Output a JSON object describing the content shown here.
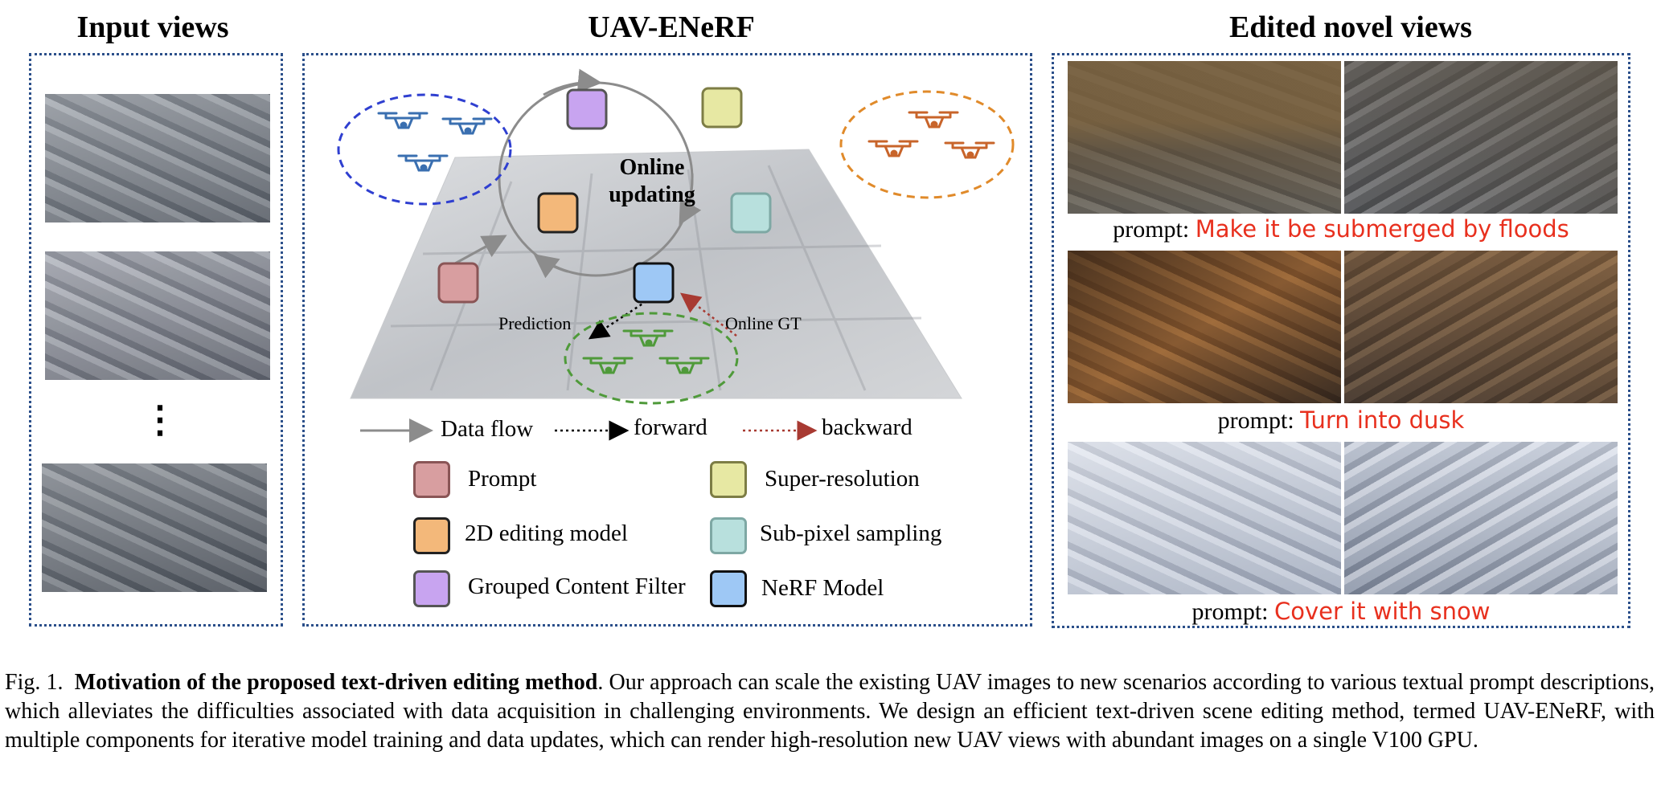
{
  "titles": {
    "input": "Input views",
    "method": "UAV-ENeRF",
    "edited": "Edited novel views"
  },
  "diagram": {
    "center_label_1": "Online",
    "center_label_2": "updating",
    "prediction_label": "Prediction",
    "online_gt_label": "Online GT",
    "ellipsis": "⋮"
  },
  "flow_legend": {
    "data_flow": "Data flow",
    "forward": "forward",
    "backward": "backward"
  },
  "components": [
    {
      "label": "Prompt",
      "color": "#d89ea0",
      "border": "#8a5556"
    },
    {
      "label": "Super-resolution",
      "color": "#e7e8a3",
      "border": "#7d7d45"
    },
    {
      "label": "2D editing model",
      "color": "#f3b87a",
      "border": "#222222"
    },
    {
      "label": "Sub-pixel sampling",
      "color": "#b8e0dd",
      "border": "#7ea8a4"
    },
    {
      "label": "Grouped Content Filter",
      "color": "#c8a4f0",
      "border": "#555555"
    },
    {
      "label": "NeRF Model",
      "color": "#9ec8f5",
      "border": "#111111"
    }
  ],
  "edited": [
    {
      "prefix": "prompt: ",
      "text": "Make it be submerged by floods"
    },
    {
      "prefix": "prompt: ",
      "text": "Turn into dusk"
    },
    {
      "prefix": "prompt: ",
      "text": "Cover it with snow"
    }
  ],
  "colors": {
    "panel_border": "#2b4f8a",
    "drone_blue": "#3a6fb0",
    "drone_orange": "#c8642a",
    "drone_green": "#4f9a3a",
    "prompt_red": "#e8301e",
    "backward_red": "#a83a32"
  },
  "caption": {
    "fig": "Fig. 1.",
    "bold": "Motivation of the proposed text-driven editing method",
    "text": ". Our approach can scale the existing UAV images to new scenarios according to various textual prompt descriptions, which alleviates the difficulties associated with data acquisition in challenging environments. We design an efficient text-driven scene editing method, termed UAV-ENeRF, with multiple components for iterative model training and data updates, which can render high-resolution new UAV views with abundant images on a single V100 GPU."
  }
}
